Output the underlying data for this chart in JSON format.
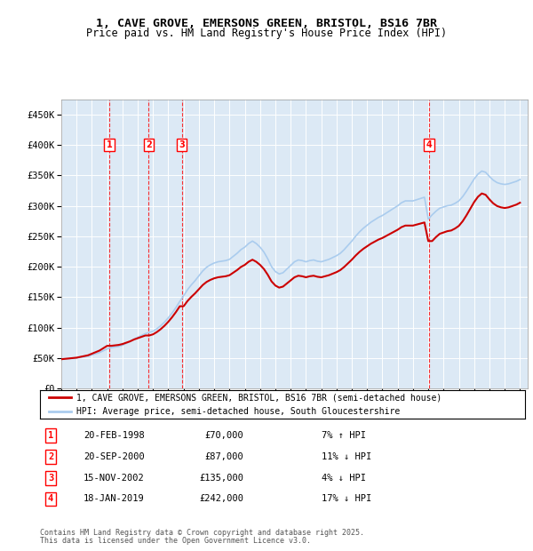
{
  "title_line1": "1, CAVE GROVE, EMERSONS GREEN, BRISTOL, BS16 7BR",
  "title_line2": "Price paid vs. HM Land Registry's House Price Index (HPI)",
  "background_color": "#dce9f5",
  "plot_bg": "#dce9f5",
  "sale_color": "#cc0000",
  "hpi_color": "#aaccee",
  "ylim": [
    0,
    475000
  ],
  "yticks": [
    0,
    50000,
    100000,
    150000,
    200000,
    250000,
    300000,
    350000,
    400000,
    450000
  ],
  "ytick_labels": [
    "£0",
    "£50K",
    "£100K",
    "£150K",
    "£200K",
    "£250K",
    "£300K",
    "£350K",
    "£400K",
    "£450K"
  ],
  "xlim_start": 1995.0,
  "xlim_end": 2025.5,
  "legend_line1": "1, CAVE GROVE, EMERSONS GREEN, BRISTOL, BS16 7BR (semi-detached house)",
  "legend_line2": "HPI: Average price, semi-detached house, South Gloucestershire",
  "footer1": "Contains HM Land Registry data © Crown copyright and database right 2025.",
  "footer2": "This data is licensed under the Open Government Licence v3.0.",
  "sales": [
    {
      "num": 1,
      "date_year": 1998.13,
      "price": 70000,
      "label": "20-FEB-1998",
      "amount": "£70,000",
      "pct": "7% ↑ HPI"
    },
    {
      "num": 2,
      "date_year": 2000.72,
      "price": 87000,
      "label": "20-SEP-2000",
      "amount": "£87,000",
      "pct": "11% ↓ HPI"
    },
    {
      "num": 3,
      "date_year": 2002.88,
      "price": 135000,
      "label": "15-NOV-2002",
      "amount": "£135,000",
      "pct": "4% ↓ HPI"
    },
    {
      "num": 4,
      "date_year": 2019.05,
      "price": 242000,
      "label": "18-JAN-2019",
      "amount": "£242,000",
      "pct": "17% ↓ HPI"
    }
  ],
  "hpi_data": {
    "years": [
      1995.0,
      1995.25,
      1995.5,
      1995.75,
      1996.0,
      1996.25,
      1996.5,
      1996.75,
      1997.0,
      1997.25,
      1997.5,
      1997.75,
      1998.0,
      1998.25,
      1998.5,
      1998.75,
      1999.0,
      1999.25,
      1999.5,
      1999.75,
      2000.0,
      2000.25,
      2000.5,
      2000.75,
      2001.0,
      2001.25,
      2001.5,
      2001.75,
      2002.0,
      2002.25,
      2002.5,
      2002.75,
      2003.0,
      2003.25,
      2003.5,
      2003.75,
      2004.0,
      2004.25,
      2004.5,
      2004.75,
      2005.0,
      2005.25,
      2005.5,
      2005.75,
      2006.0,
      2006.25,
      2006.5,
      2006.75,
      2007.0,
      2007.25,
      2007.5,
      2007.75,
      2008.0,
      2008.25,
      2008.5,
      2008.75,
      2009.0,
      2009.25,
      2009.5,
      2009.75,
      2010.0,
      2010.25,
      2010.5,
      2010.75,
      2011.0,
      2011.25,
      2011.5,
      2011.75,
      2012.0,
      2012.25,
      2012.5,
      2012.75,
      2013.0,
      2013.25,
      2013.5,
      2013.75,
      2014.0,
      2014.25,
      2014.5,
      2014.75,
      2015.0,
      2015.25,
      2015.5,
      2015.75,
      2016.0,
      2016.25,
      2016.5,
      2016.75,
      2017.0,
      2017.25,
      2017.5,
      2017.75,
      2018.0,
      2018.25,
      2018.5,
      2018.75,
      2019.0,
      2019.25,
      2019.5,
      2019.75,
      2020.0,
      2020.25,
      2020.5,
      2020.75,
      2021.0,
      2021.25,
      2021.5,
      2021.75,
      2022.0,
      2022.25,
      2022.5,
      2022.75,
      2023.0,
      2023.25,
      2023.5,
      2023.75,
      2024.0,
      2024.25,
      2024.5,
      2024.75,
      2025.0
    ],
    "values": [
      48000,
      48500,
      49000,
      49500,
      50000,
      51000,
      52000,
      53000,
      55000,
      57000,
      59000,
      62000,
      65000,
      67000,
      68000,
      69000,
      71000,
      74000,
      77000,
      81000,
      84000,
      87000,
      90000,
      92000,
      94000,
      98000,
      103000,
      109000,
      116000,
      124000,
      133000,
      143000,
      152000,
      162000,
      170000,
      177000,
      185000,
      193000,
      199000,
      203000,
      206000,
      208000,
      209000,
      210000,
      212000,
      217000,
      222000,
      228000,
      232000,
      238000,
      242000,
      238000,
      232000,
      224000,
      213000,
      200000,
      192000,
      188000,
      190000,
      196000,
      202000,
      208000,
      211000,
      210000,
      208000,
      210000,
      211000,
      209000,
      208000,
      210000,
      212000,
      215000,
      218000,
      222000,
      228000,
      235000,
      242000,
      250000,
      257000,
      263000,
      268000,
      273000,
      277000,
      281000,
      284000,
      288000,
      292000,
      296000,
      300000,
      305000,
      308000,
      308000,
      308000,
      310000,
      312000,
      314000,
      278000,
      285000,
      291000,
      296000,
      298000,
      300000,
      301000,
      304000,
      308000,
      315000,
      324000,
      334000,
      344000,
      352000,
      357000,
      355000,
      348000,
      342000,
      338000,
      336000,
      335000,
      336000,
      338000,
      340000,
      343000
    ]
  },
  "sale_price_data": {
    "sale_years": [
      1995.0,
      1998.13,
      2000.72,
      2002.88,
      2019.05,
      2025.0
    ],
    "sale_prices": [
      48000,
      70000,
      87000,
      135000,
      242000,
      305000
    ]
  }
}
